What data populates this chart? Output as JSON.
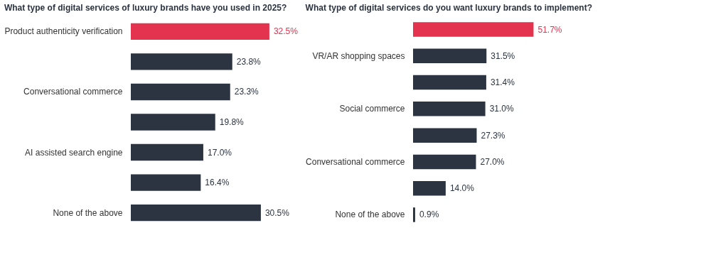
{
  "chart_data": [
    {
      "type": "bar",
      "orientation": "horizontal",
      "title": "What type of digital services of luxury brands have you used in 2025?",
      "categories": [
        "Product authenticity verification",
        null,
        "Conversational commerce",
        null,
        "AI assisted search engine",
        null,
        "None of the above"
      ],
      "values": [
        32.5,
        23.8,
        23.3,
        19.8,
        17.0,
        16.4,
        30.5
      ],
      "value_labels": [
        "32.5%",
        "23.8%",
        "23.3%",
        "19.8%",
        "17.0%",
        "16.4%",
        "30.5%"
      ],
      "colors": [
        "#e3334f",
        "#2b3440",
        "#2b3440",
        "#2b3440",
        "#2b3440",
        "#2b3440",
        "#2b3440"
      ],
      "grid": false
    },
    {
      "type": "bar",
      "orientation": "horizontal",
      "title": "What type of digital services do you want luxury brands to implement?",
      "categories": [
        null,
        "VR/AR shopping spaces",
        null,
        "Social commerce",
        null,
        "Conversational commerce",
        null,
        "None of the above"
      ],
      "values": [
        51.7,
        31.5,
        31.4,
        31.0,
        27.3,
        27.0,
        14.0,
        0.9
      ],
      "value_labels": [
        "51.7%",
        "31.5%",
        "31.4%",
        "31.0%",
        "27.3%",
        "27.0%",
        "14.0%",
        "0.9%"
      ],
      "colors": [
        "#e3334f",
        "#2b3440",
        "#2b3440",
        "#2b3440",
        "#2b3440",
        "#2b3440",
        "#2b3440",
        "#2b3440"
      ],
      "grid": false
    }
  ]
}
